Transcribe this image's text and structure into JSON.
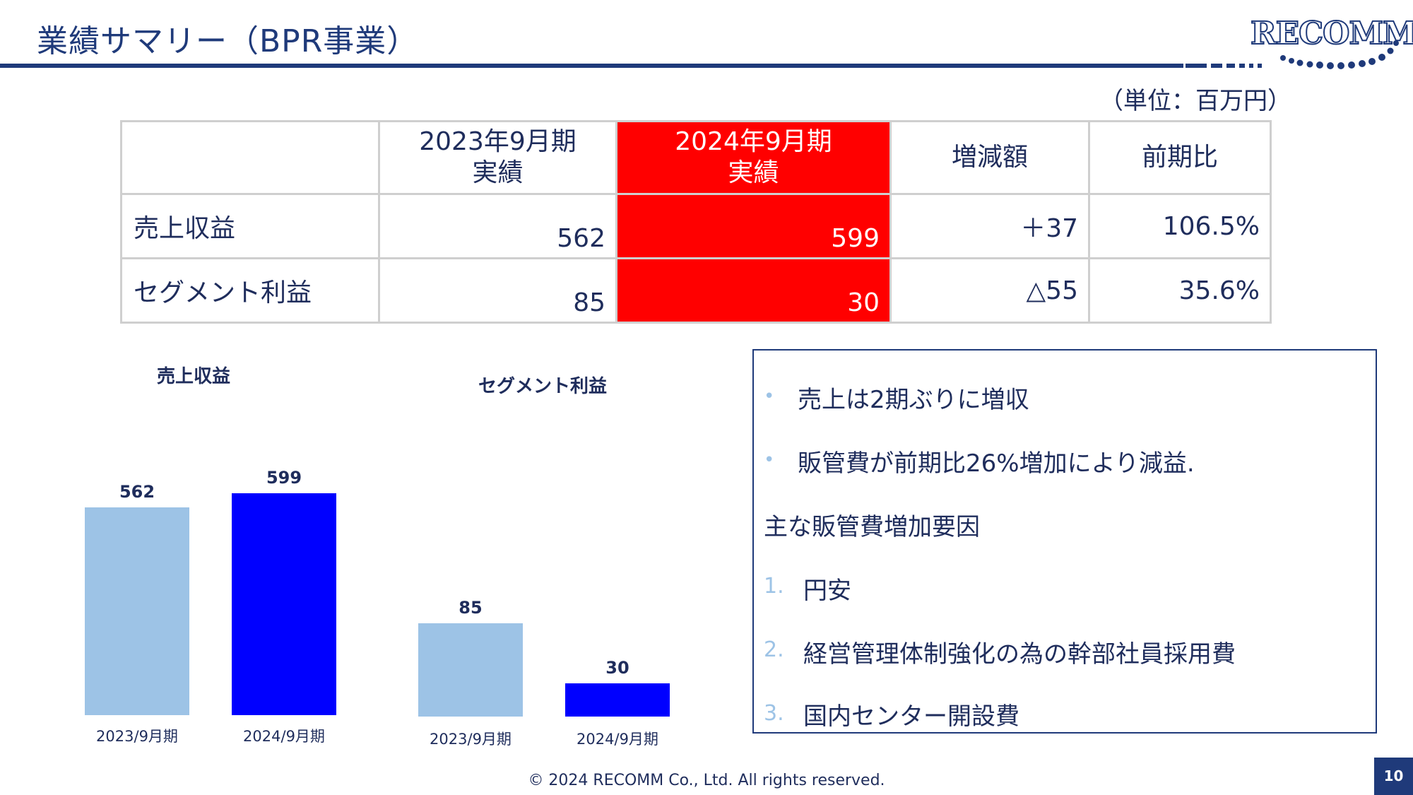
{
  "header": {
    "title": "業績サマリー（BPR事業）",
    "logo_text": "RECOMM"
  },
  "unit": "（単位：百万円）",
  "table": {
    "headers": [
      "",
      "2023年9月期\n実績",
      "2024年9月期\n実績",
      "増減額",
      "前期比"
    ],
    "rows": [
      {
        "label": "売上収益",
        "y2023": "562",
        "y2024": "599",
        "diff": "＋37",
        "ratio": "106.5%"
      },
      {
        "label": "セグメント利益",
        "y2023": "85",
        "y2024": "30",
        "diff": "△55",
        "ratio": "35.6%"
      }
    ]
  },
  "chart_data": [
    {
      "type": "bar",
      "title": "売上収益",
      "categories": [
        "2023/9月期",
        "2024/9月期"
      ],
      "values": [
        562,
        599
      ],
      "colors": [
        "#9dc3e6",
        "#0000ff"
      ],
      "ylim": [
        0,
        650
      ]
    },
    {
      "type": "bar",
      "title": "セグメント利益",
      "categories": [
        "2023/9月期",
        "2024/9月期"
      ],
      "values": [
        85,
        30
      ],
      "colors": [
        "#9dc3e6",
        "#0000ff"
      ],
      "ylim": [
        0,
        150
      ]
    }
  ],
  "notes": {
    "bullets": [
      "売上は2期ぶりに増収",
      "販管費が前期比26%増加により減益."
    ],
    "heading": "主な販管費増加要因",
    "items": [
      {
        "num": "1.",
        "text": "円安"
      },
      {
        "num": "2.",
        "text": "経営管理体制強化の為の幹部社員採用費"
      },
      {
        "num": "3.",
        "text": "国内センター開設費"
      }
    ]
  },
  "footer": {
    "copyright": "© 2024 RECOMM Co., Ltd. All rights reserved.",
    "page": "10"
  },
  "colors": {
    "navy": "#1f3a7a",
    "highlight": "#ff0000",
    "bar_light": "#9dc3e6",
    "bar_dark": "#0000ff"
  }
}
